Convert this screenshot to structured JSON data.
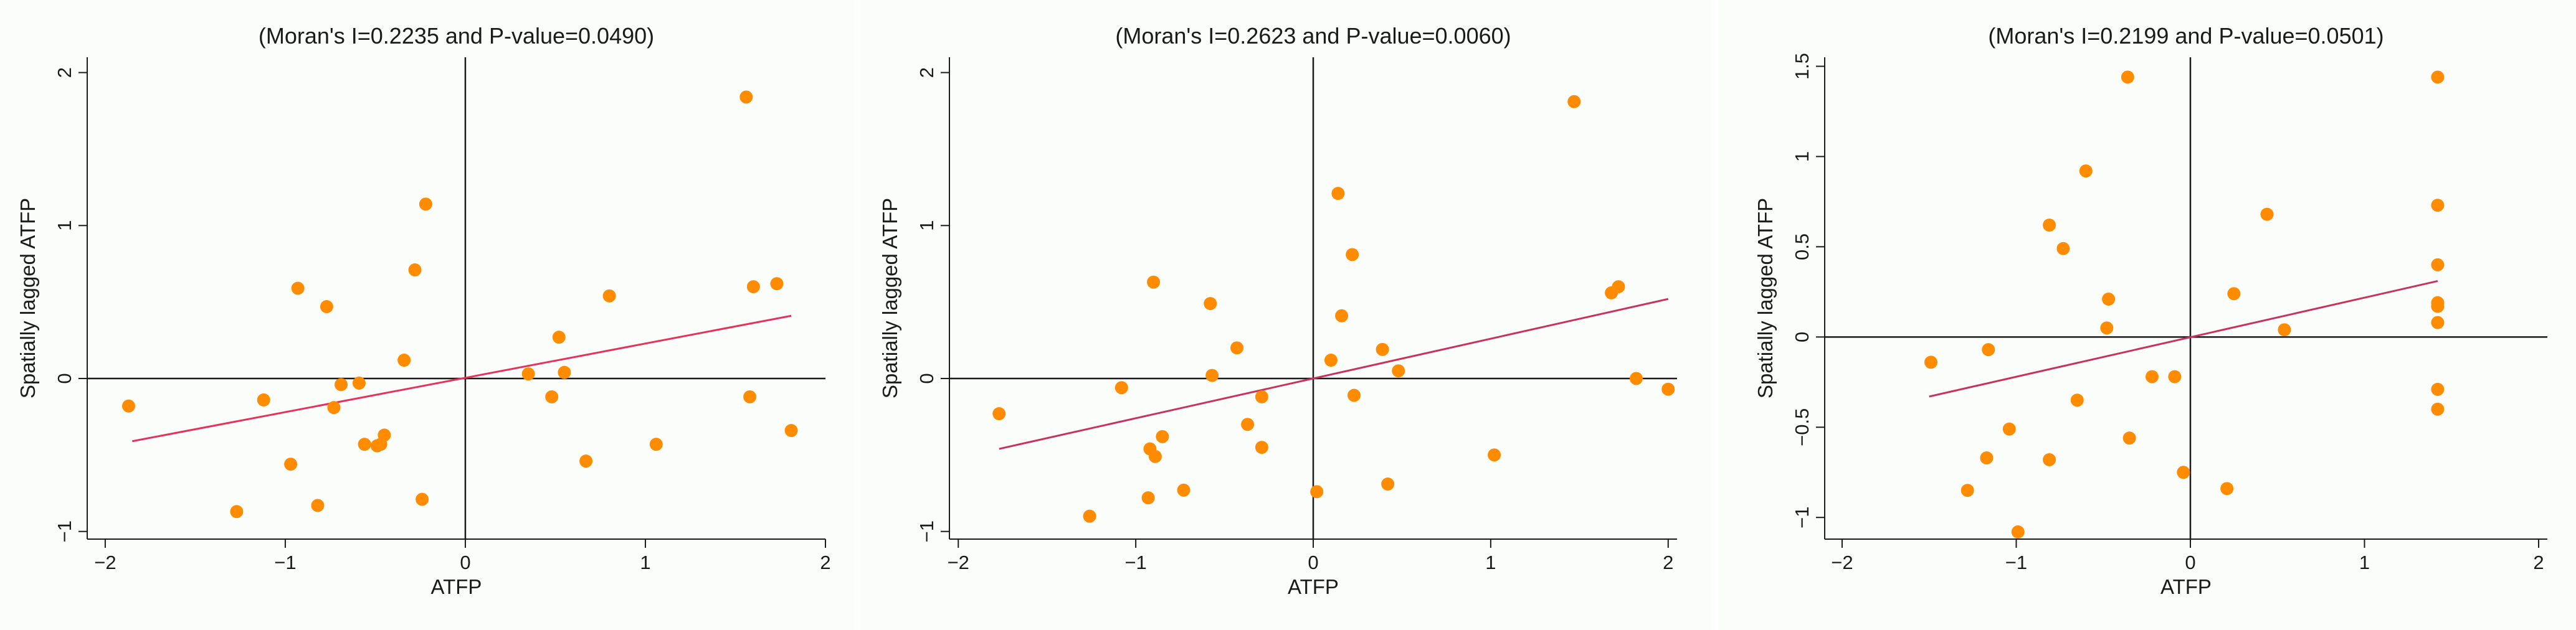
{
  "chart_data": [
    {
      "type": "scatter",
      "title": "(Moran's I=0.2235 and P-value=0.0490)",
      "xlabel": "ATFP",
      "ylabel": "Spatially lagged ATFP",
      "xlim": [
        -2.1,
        2.0
      ],
      "ylim": [
        -1.05,
        2.1
      ],
      "xticks": [
        -2,
        -1,
        0,
        1,
        2
      ],
      "yticks": [
        -1,
        0,
        1,
        2
      ],
      "xtick_labels": [
        "−2",
        "−1",
        "0",
        "1",
        "2"
      ],
      "ytick_labels": [
        "−1",
        "0",
        "1",
        "2"
      ],
      "marker_color": "#ff8c00",
      "fit_line_color": "#e8305a",
      "fit_line": {
        "x": [
          -1.85,
          1.81
        ],
        "y": [
          -0.41,
          0.41
        ]
      },
      "points": [
        [
          -1.87,
          -0.18
        ],
        [
          -1.27,
          -0.87
        ],
        [
          -1.12,
          -0.14
        ],
        [
          -0.97,
          -0.56
        ],
        [
          -0.93,
          0.59
        ],
        [
          -0.82,
          -0.83
        ],
        [
          -0.77,
          0.47
        ],
        [
          -0.73,
          -0.19
        ],
        [
          -0.69,
          -0.04
        ],
        [
          -0.59,
          -0.03
        ],
        [
          -0.56,
          -0.43
        ],
        [
          -0.49,
          -0.44
        ],
        [
          -0.47,
          -0.43
        ],
        [
          -0.45,
          -0.37
        ],
        [
          -0.34,
          0.12
        ],
        [
          -0.28,
          0.71
        ],
        [
          -0.24,
          -0.79
        ],
        [
          -0.22,
          1.14
        ],
        [
          0.35,
          0.03
        ],
        [
          0.48,
          -0.12
        ],
        [
          0.52,
          0.27
        ],
        [
          0.55,
          0.04
        ],
        [
          0.67,
          -0.54
        ],
        [
          0.8,
          0.54
        ],
        [
          1.06,
          -0.43
        ],
        [
          1.56,
          1.84
        ],
        [
          1.58,
          -0.12
        ],
        [
          1.6,
          0.6
        ],
        [
          1.73,
          0.62
        ],
        [
          1.81,
          -0.34
        ]
      ]
    },
    {
      "type": "scatter",
      "title": "(Moran's I=0.2623 and P-value=0.0060)",
      "xlabel": "ATFP",
      "ylabel": "Spatially lagged ATFP",
      "xlim": [
        -2.05,
        2.05
      ],
      "ylim": [
        -1.05,
        2.1
      ],
      "xticks": [
        -2,
        -1,
        0,
        1,
        2
      ],
      "yticks": [
        -1,
        0,
        1,
        2
      ],
      "xtick_labels": [
        "−2",
        "−1",
        "0",
        "1",
        "2"
      ],
      "ytick_labels": [
        "−1",
        "0",
        "1",
        "2"
      ],
      "marker_color": "#ff8c00",
      "fit_line_color": "#c8325c",
      "fit_line": {
        "x": [
          -1.77,
          2.0
        ],
        "y": [
          -0.46,
          0.52
        ]
      },
      "points": [
        [
          -1.77,
          -0.23
        ],
        [
          -1.26,
          -0.9
        ],
        [
          -1.08,
          -0.06
        ],
        [
          -0.93,
          -0.78
        ],
        [
          -0.92,
          -0.46
        ],
        [
          -0.9,
          0.63
        ],
        [
          -0.89,
          -0.51
        ],
        [
          -0.85,
          -0.38
        ],
        [
          -0.73,
          -0.73
        ],
        [
          -0.58,
          0.49
        ],
        [
          -0.57,
          0.02
        ],
        [
          -0.43,
          0.2
        ],
        [
          -0.37,
          -0.3
        ],
        [
          -0.29,
          -0.12
        ],
        [
          -0.29,
          -0.45
        ],
        [
          0.02,
          -0.74
        ],
        [
          0.1,
          0.12
        ],
        [
          0.14,
          1.21
        ],
        [
          0.16,
          0.41
        ],
        [
          0.22,
          0.81
        ],
        [
          0.23,
          -0.11
        ],
        [
          0.39,
          0.19
        ],
        [
          0.42,
          -0.69
        ],
        [
          0.48,
          0.05
        ],
        [
          1.02,
          -0.5
        ],
        [
          1.47,
          1.81
        ],
        [
          1.68,
          0.56
        ],
        [
          1.72,
          0.6
        ],
        [
          1.82,
          0.0
        ],
        [
          2.0,
          -0.07
        ]
      ]
    },
    {
      "type": "scatter",
      "title": "(Moran's I=0.2199 and P-value=0.0501)",
      "xlabel": "ATFP",
      "ylabel": "Spatially lagged ATFP",
      "xlim": [
        -2.1,
        2.05
      ],
      "ylim": [
        -1.12,
        1.55
      ],
      "xticks": [
        -2,
        -1,
        0,
        1,
        2
      ],
      "yticks": [
        -1,
        -0.5,
        0,
        0.5,
        1,
        1.5
      ],
      "xtick_labels": [
        "−2",
        "−1",
        "0",
        "1",
        "2"
      ],
      "ytick_labels": [
        "−1",
        "−0.5",
        "0",
        "0.5",
        "1",
        "1.5"
      ],
      "marker_color": "#ff8c00",
      "fit_line_color": "#c8325c",
      "fit_line": {
        "x": [
          -1.5,
          1.42
        ],
        "y": [
          -0.33,
          0.31
        ]
      },
      "points": [
        [
          -1.49,
          -0.14
        ],
        [
          -1.28,
          -0.85
        ],
        [
          -1.17,
          -0.67
        ],
        [
          -1.16,
          -0.07
        ],
        [
          -1.04,
          -0.51
        ],
        [
          -0.99,
          -1.08
        ],
        [
          -0.81,
          0.62
        ],
        [
          -0.81,
          -0.68
        ],
        [
          -0.73,
          0.49
        ],
        [
          -0.65,
          -0.35
        ],
        [
          -0.6,
          0.92
        ],
        [
          -0.48,
          0.05
        ],
        [
          -0.47,
          0.21
        ],
        [
          -0.36,
          1.44
        ],
        [
          -0.35,
          -0.56
        ],
        [
          -0.22,
          -0.22
        ],
        [
          -0.09,
          -0.22
        ],
        [
          -0.04,
          -0.75
        ],
        [
          0.21,
          -0.84
        ],
        [
          0.25,
          0.24
        ],
        [
          0.44,
          0.68
        ],
        [
          0.54,
          0.04
        ],
        [
          1.42,
          1.44
        ],
        [
          1.42,
          0.73
        ],
        [
          1.42,
          0.4
        ],
        [
          1.42,
          0.19
        ],
        [
          1.42,
          0.17
        ],
        [
          1.42,
          0.08
        ],
        [
          1.42,
          -0.29
        ],
        [
          1.42,
          -0.4
        ]
      ]
    }
  ]
}
